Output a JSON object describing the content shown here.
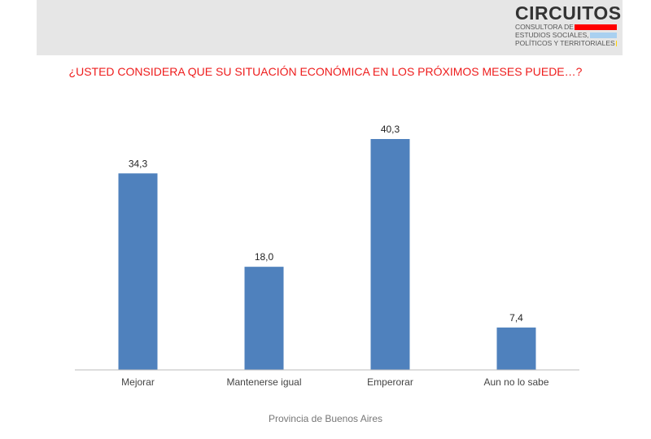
{
  "logo": {
    "name": "CIRCUITOS",
    "line1": "CONSULTORA DE",
    "line2": "ESTUDIOS SOCIALES,",
    "line3": "POLÍTICOS Y TERRITORIALES",
    "colors": [
      "#ff0000",
      "#a9d0f0",
      "#ffd200"
    ]
  },
  "chart_data": {
    "type": "bar",
    "title": "¿USTED CONSIDERA QUE SU SITUACIÓN ECONÓMICA EN LOS PRÓXIMOS MESES PUEDE…?",
    "categories": [
      "Mejorar",
      "Mantenerse igual",
      "Emperorar",
      "Aun no lo sabe"
    ],
    "values": [
      34.3,
      18.0,
      40.3,
      7.4
    ],
    "labels": [
      "34,3",
      "18,0",
      "40,3",
      "7,4"
    ],
    "xlabel": "Provincia de Buenos Aires",
    "ylim": [
      0,
      45
    ],
    "grid": false,
    "bar_color": "#4f81bd",
    "title_color": "#ee1c1c"
  }
}
